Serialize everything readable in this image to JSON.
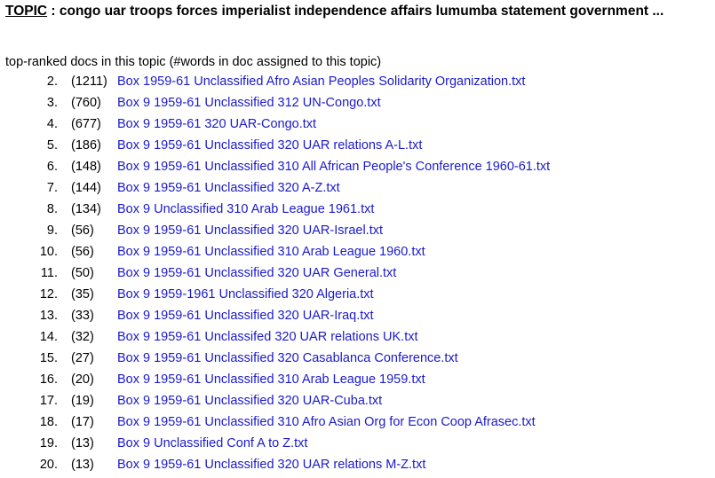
{
  "topic": {
    "link_label": "TOPIC",
    "words": " : congo uar troops forces imperialist independence affairs lumumba statement government ..."
  },
  "intro": "top-ranked docs in this topic (#words in doc assigned to this topic)",
  "docs": [
    {
      "rank": "2.",
      "count": "(1211)",
      "title": "Box 1959-61 Unclassified Afro Asian Peoples Solidarity Organization.txt"
    },
    {
      "rank": "3.",
      "count": "(760)",
      "title": "Box 9 1959-61 Unclassified 312 UN-Congo.txt"
    },
    {
      "rank": "4.",
      "count": "(677)",
      "title": "Box 9 1959-61 320 UAR-Congo.txt"
    },
    {
      "rank": "5.",
      "count": "(186)",
      "title": "Box 9 1959-61 Unclassified 320 UAR relations A-L.txt"
    },
    {
      "rank": "6.",
      "count": "(148)",
      "title": "Box 9 1959-61 Unclassified 310 All African People's Conference 1960-61.txt"
    },
    {
      "rank": "7.",
      "count": "(144)",
      "title": "Box 9 1959-61 Unclassified 320 A-Z.txt"
    },
    {
      "rank": "8.",
      "count": "(134)",
      "title": "Box 9 Unclassified 310 Arab League 1961.txt"
    },
    {
      "rank": "9.",
      "count": "(56)",
      "title": "Box 9 1959-61 Unclassified 320 UAR-Israel.txt"
    },
    {
      "rank": "10.",
      "count": "(56)",
      "title": "Box 9 1959-61 Unclassified 310 Arab League 1960.txt"
    },
    {
      "rank": "11.",
      "count": "(50)",
      "title": "Box 9 1959-61 Unclassified 320 UAR General.txt"
    },
    {
      "rank": "12.",
      "count": "(35)",
      "title": "Box 9 1959-1961 Unclassified 320 Algeria.txt"
    },
    {
      "rank": "13.",
      "count": "(33)",
      "title": "Box 9 1959-61 Unclassified 320 UAR-Iraq.txt"
    },
    {
      "rank": "14.",
      "count": "(32)",
      "title": "Box 9 1959-61 Unclassifed 320 UAR relations UK.txt"
    },
    {
      "rank": "15.",
      "count": "(27)",
      "title": "Box 9 1959-61 Unclassified 320 Casablanca Conference.txt"
    },
    {
      "rank": "16.",
      "count": "(20)",
      "title": "Box 9 1959-61 Unclassified 310 Arab League 1959.txt"
    },
    {
      "rank": "17.",
      "count": "(19)",
      "title": "Box 9 1959-61 Unclassified 320 UAR-Cuba.txt"
    },
    {
      "rank": "18.",
      "count": "(17)",
      "title": "Box 9 1959-61 Unclassified 310 Afro Asian Org for Econ Coop Afrasec.txt"
    },
    {
      "rank": "19.",
      "count": "(13)",
      "title": "Box 9 Unclassified Conf A to Z.txt"
    },
    {
      "rank": "20.",
      "count": "(13)",
      "title": "Box 9 1959-61 Unclassified 320 UAR relations M-Z.txt"
    }
  ],
  "colors": {
    "link": "#1a1acc",
    "text": "#000000",
    "background": "#ffffff"
  }
}
